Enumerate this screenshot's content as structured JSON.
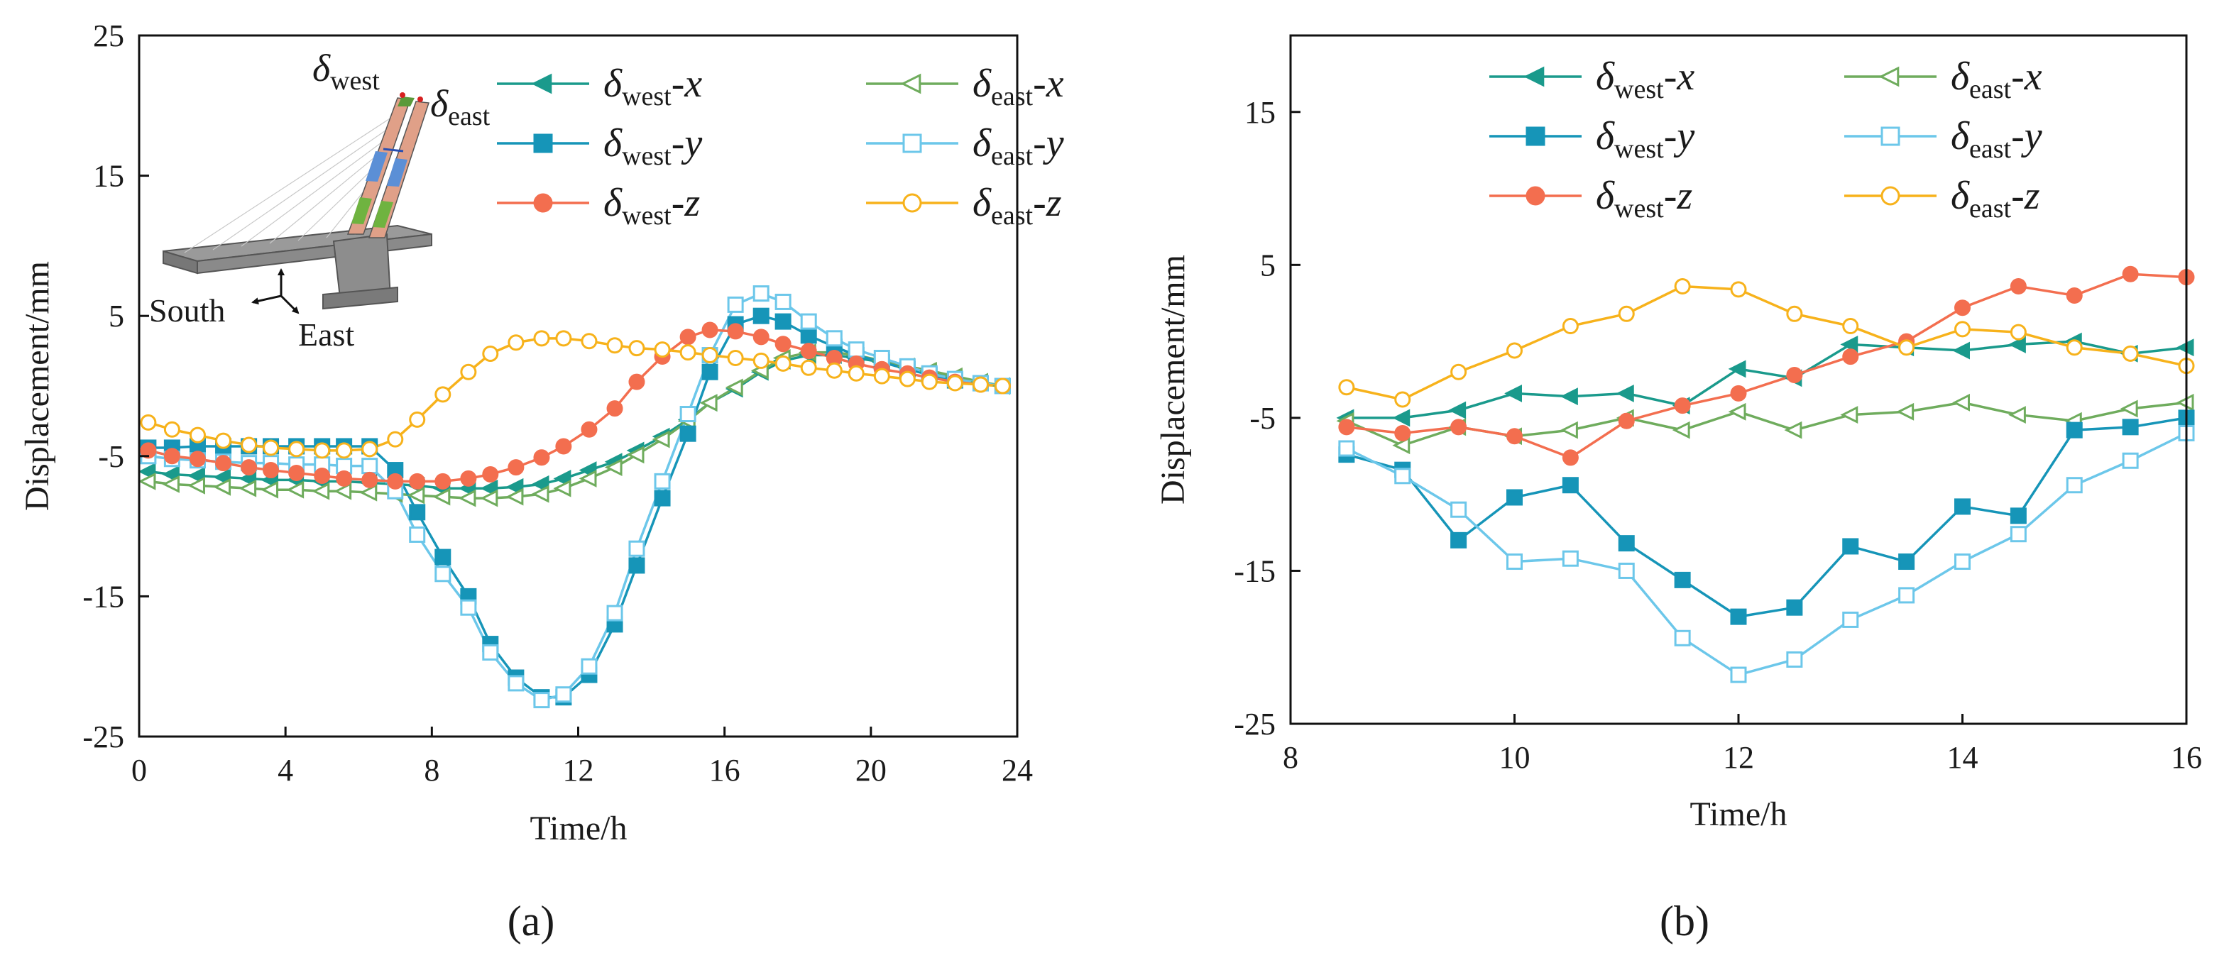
{
  "chart_data": [
    {
      "id": "a",
      "type": "line",
      "panel_label": "(a)",
      "xlabel": "Time/h",
      "ylabel": "Displacement/mm",
      "xlim": [
        0,
        24
      ],
      "ylim": [
        -25,
        25
      ],
      "xticks": [
        0,
        4,
        8,
        12,
        16,
        20,
        24
      ],
      "yticks": [
        -25,
        -15,
        -5,
        5,
        15,
        25
      ],
      "x": [
        0.25,
        0.9,
        1.6,
        2.3,
        3.0,
        3.6,
        4.3,
        5.0,
        5.6,
        6.3,
        7.0,
        7.6,
        8.3,
        9.0,
        9.6,
        10.3,
        11.0,
        11.6,
        12.3,
        13.0,
        13.6,
        14.3,
        15.0,
        15.6,
        16.3,
        17.0,
        17.6,
        18.3,
        19.0,
        19.6,
        20.3,
        21.0,
        21.6,
        22.3,
        23.0,
        23.6
      ],
      "series": [
        {
          "name": "west-x",
          "var": "x",
          "loc": "west",
          "color": "#1a9a8c",
          "marker": "triangle",
          "filled": true,
          "values": [
            -6.1,
            -6.3,
            -6.4,
            -6.5,
            -6.6,
            -6.7,
            -6.7,
            -6.8,
            -6.8,
            -6.9,
            -7.0,
            -7.1,
            -7.3,
            -7.3,
            -7.3,
            -7.2,
            -7.0,
            -6.6,
            -6.0,
            -5.4,
            -4.6,
            -3.6,
            -2.4,
            -1.2,
            -0.2,
            1.0,
            1.8,
            2.2,
            2.2,
            2.0,
            1.7,
            1.3,
            1.0,
            0.6,
            0.3,
            0.0
          ]
        },
        {
          "name": "east-x",
          "var": "x",
          "loc": "east",
          "color": "#6fac5d",
          "marker": "triangle",
          "filled": false,
          "values": [
            -6.8,
            -7.0,
            -7.1,
            -7.2,
            -7.3,
            -7.4,
            -7.4,
            -7.5,
            -7.5,
            -7.6,
            -7.7,
            -7.8,
            -7.9,
            -8.0,
            -8.0,
            -7.9,
            -7.7,
            -7.3,
            -6.6,
            -5.8,
            -4.9,
            -3.8,
            -2.5,
            -1.2,
            -0.1,
            1.1,
            2.0,
            2.4,
            2.4,
            2.2,
            1.8,
            1.4,
            1.1,
            0.7,
            0.3,
            0.0
          ]
        },
        {
          "name": "west-y",
          "var": "y",
          "loc": "west",
          "color": "#1695b8",
          "marker": "square",
          "filled": true,
          "values": [
            -4.4,
            -4.4,
            -4.3,
            -4.3,
            -4.3,
            -4.3,
            -4.3,
            -4.3,
            -4.3,
            -4.3,
            -6.0,
            -9.0,
            -12.2,
            -15.0,
            -18.4,
            -20.8,
            -22.2,
            -22.2,
            -20.6,
            -17.0,
            -12.8,
            -8.0,
            -3.4,
            1.0,
            4.4,
            5.0,
            4.6,
            3.6,
            2.8,
            2.2,
            1.7,
            1.2,
            0.8,
            0.4,
            0.2,
            0.0
          ]
        },
        {
          "name": "east-y",
          "var": "y",
          "loc": "east",
          "color": "#6cc7ea",
          "marker": "square",
          "filled": false,
          "values": [
            -5.0,
            -5.2,
            -5.3,
            -5.4,
            -5.5,
            -5.5,
            -5.6,
            -5.6,
            -5.7,
            -5.7,
            -7.5,
            -10.6,
            -13.4,
            -15.8,
            -19.0,
            -21.2,
            -22.4,
            -22.0,
            -20.0,
            -16.2,
            -11.6,
            -6.8,
            -2.0,
            2.2,
            5.8,
            6.6,
            6.0,
            4.6,
            3.4,
            2.6,
            2.0,
            1.4,
            0.9,
            0.5,
            0.2,
            0.0
          ]
        },
        {
          "name": "west-z",
          "var": "z",
          "loc": "west",
          "color": "#f36e4f",
          "marker": "circle",
          "filled": true,
          "values": [
            -4.6,
            -5.0,
            -5.2,
            -5.5,
            -5.8,
            -6.0,
            -6.2,
            -6.4,
            -6.6,
            -6.7,
            -6.8,
            -6.8,
            -6.8,
            -6.6,
            -6.3,
            -5.8,
            -5.1,
            -4.3,
            -3.1,
            -1.6,
            0.3,
            2.1,
            3.5,
            4.0,
            3.9,
            3.5,
            3.0,
            2.5,
            2.0,
            1.6,
            1.2,
            0.9,
            0.6,
            0.3,
            0.1,
            0.0
          ]
        },
        {
          "name": "east-z",
          "var": "z",
          "loc": "east",
          "color": "#f7b21b",
          "marker": "circle",
          "filled": false,
          "values": [
            -2.6,
            -3.1,
            -3.5,
            -3.9,
            -4.2,
            -4.4,
            -4.5,
            -4.6,
            -4.6,
            -4.5,
            -3.8,
            -2.4,
            -0.6,
            1.0,
            2.3,
            3.1,
            3.4,
            3.4,
            3.2,
            2.9,
            2.7,
            2.6,
            2.4,
            2.2,
            2.0,
            1.8,
            1.6,
            1.3,
            1.1,
            0.9,
            0.7,
            0.5,
            0.3,
            0.2,
            0.1,
            0.0
          ]
        }
      ],
      "legend": {
        "placement": "top-right",
        "entries": [
          {
            "sym": "δ",
            "sub": "west",
            "suffix": "-x"
          },
          {
            "sym": "δ",
            "sub": "east",
            "suffix": "-x"
          },
          {
            "sym": "δ",
            "sub": "west",
            "suffix": "-y"
          },
          {
            "sym": "δ",
            "sub": "east",
            "suffix": "-y"
          },
          {
            "sym": "δ",
            "sub": "west",
            "suffix": "-z"
          },
          {
            "sym": "δ",
            "sub": "east",
            "suffix": "-z"
          }
        ]
      },
      "inset": {
        "labels": {
          "west_sym": "δ",
          "west_sub": "west",
          "east_sym": "δ",
          "east_sub": "east",
          "south": "South",
          "east_dir": "East"
        }
      }
    },
    {
      "id": "b",
      "type": "line",
      "panel_label": "(b)",
      "xlabel": "Time/h",
      "ylabel": "Displacement/mm",
      "xlim": [
        8,
        16
      ],
      "ylim": [
        -25,
        20
      ],
      "xticks": [
        8,
        10,
        12,
        14,
        16
      ],
      "yticks": [
        -25,
        -15,
        -5,
        5,
        15
      ],
      "x": [
        8.5,
        9.0,
        9.5,
        10.0,
        10.5,
        11.0,
        11.5,
        12.0,
        12.5,
        13.0,
        13.5,
        14.0,
        14.5,
        15.0,
        15.5,
        16.0
      ],
      "series": [
        {
          "name": "west-x",
          "color": "#1a9a8c",
          "marker": "triangle",
          "filled": true,
          "values": [
            -5.0,
            -5.0,
            -4.5,
            -3.4,
            -3.6,
            -3.4,
            -4.2,
            -1.8,
            -2.4,
            -0.2,
            -0.4,
            -0.6,
            -0.2,
            0.0,
            -0.8,
            -0.4
          ]
        },
        {
          "name": "east-x",
          "color": "#6fac5d",
          "marker": "triangle",
          "filled": false,
          "values": [
            -5.2,
            -6.8,
            -5.6,
            -6.2,
            -5.8,
            -5.0,
            -5.8,
            -4.6,
            -5.8,
            -4.8,
            -4.6,
            -4.0,
            -4.8,
            -5.2,
            -4.4,
            -4.0
          ]
        },
        {
          "name": "west-y",
          "color": "#1695b8",
          "marker": "square",
          "filled": true,
          "values": [
            -7.4,
            -8.4,
            -13.0,
            -10.2,
            -9.4,
            -13.2,
            -15.6,
            -18.0,
            -17.4,
            -13.4,
            -14.4,
            -10.8,
            -11.4,
            -5.8,
            -5.6,
            -5.0
          ]
        },
        {
          "name": "east-y",
          "color": "#6cc7ea",
          "marker": "square",
          "filled": false,
          "values": [
            -7.0,
            -8.8,
            -11.0,
            -14.4,
            -14.2,
            -15.0,
            -19.4,
            -21.8,
            -20.8,
            -18.2,
            -16.6,
            -14.4,
            -12.6,
            -9.4,
            -7.8,
            -6.0
          ]
        },
        {
          "name": "west-z",
          "color": "#f36e4f",
          "marker": "circle",
          "filled": true,
          "values": [
            -5.6,
            -6.0,
            -5.6,
            -6.2,
            -7.6,
            -5.2,
            -4.2,
            -3.4,
            -2.2,
            -1.0,
            0.0,
            2.2,
            3.6,
            3.0,
            4.4,
            4.2
          ]
        },
        {
          "name": "east-z",
          "color": "#f7b21b",
          "marker": "circle",
          "filled": false,
          "values": [
            -3.0,
            -3.8,
            -2.0,
            -0.6,
            1.0,
            1.8,
            3.6,
            3.4,
            1.8,
            1.0,
            -0.4,
            0.8,
            0.6,
            -0.4,
            -0.8,
            -1.6
          ]
        }
      ],
      "legend": {
        "placement": "top",
        "entries": [
          {
            "sym": "δ",
            "sub": "west",
            "suffix": "-x"
          },
          {
            "sym": "δ",
            "sub": "east",
            "suffix": "-x"
          },
          {
            "sym": "δ",
            "sub": "west",
            "suffix": "-y"
          },
          {
            "sym": "δ",
            "sub": "east",
            "suffix": "-y"
          },
          {
            "sym": "δ",
            "sub": "west",
            "suffix": "-z"
          },
          {
            "sym": "δ",
            "sub": "east",
            "suffix": "-z"
          }
        ]
      }
    }
  ]
}
